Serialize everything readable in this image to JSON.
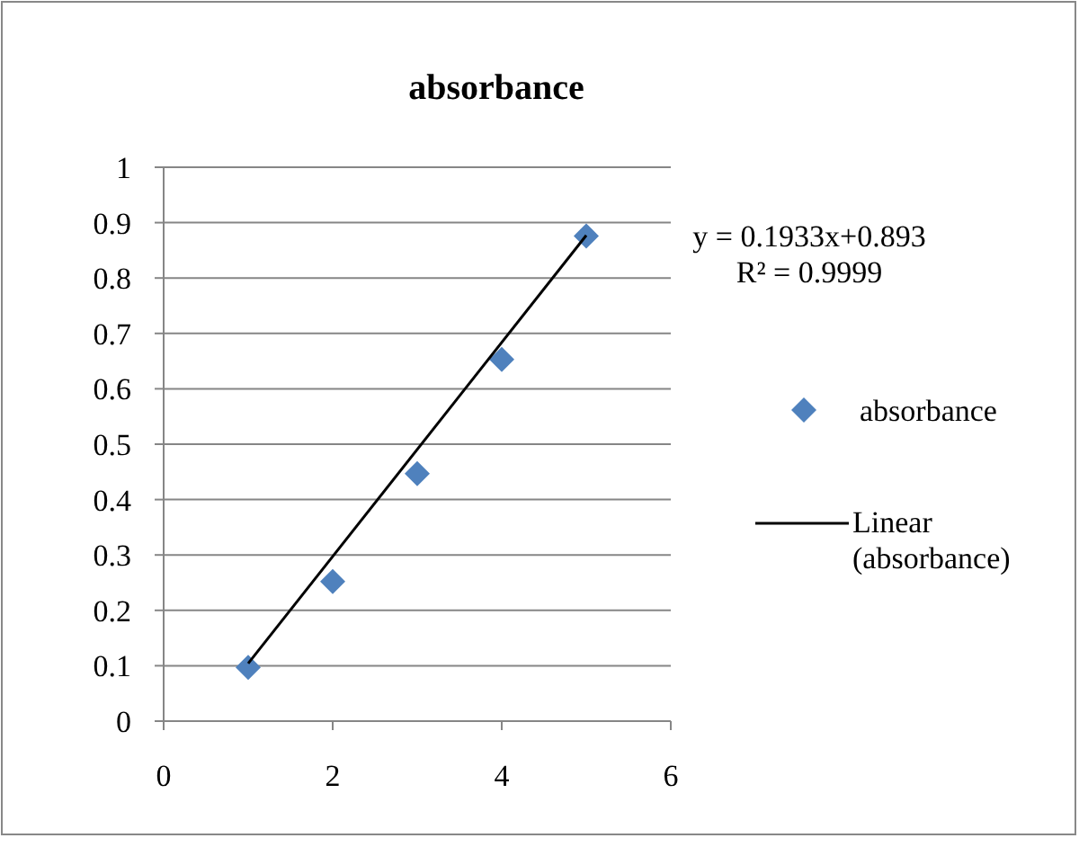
{
  "chart_data": {
    "type": "scatter",
    "title": "absorbance",
    "legend": "right",
    "grid": "y",
    "xlim": [
      0,
      6
    ],
    "xticks": [
      0,
      2,
      4,
      6
    ],
    "ylim": [
      0,
      1
    ],
    "yticks": [
      0,
      0.1,
      0.2,
      0.3,
      0.4,
      0.5,
      0.6,
      0.7,
      0.8,
      0.9,
      1
    ],
    "annotations": [
      "y = 0.1933x+0.893",
      "R² = 0.9999"
    ],
    "series": [
      {
        "name": "absorbance",
        "marker": "diamond",
        "color": "#4f81bd",
        "x": [
          1,
          2,
          3,
          4,
          5
        ],
        "values": [
          0.097,
          0.252,
          0.447,
          0.653,
          0.876
        ]
      },
      {
        "name": "Linear (absorbance)",
        "type": "line",
        "color": "#000000",
        "x": [
          1,
          5
        ],
        "values": [
          0.104,
          0.877
        ]
      }
    ]
  }
}
